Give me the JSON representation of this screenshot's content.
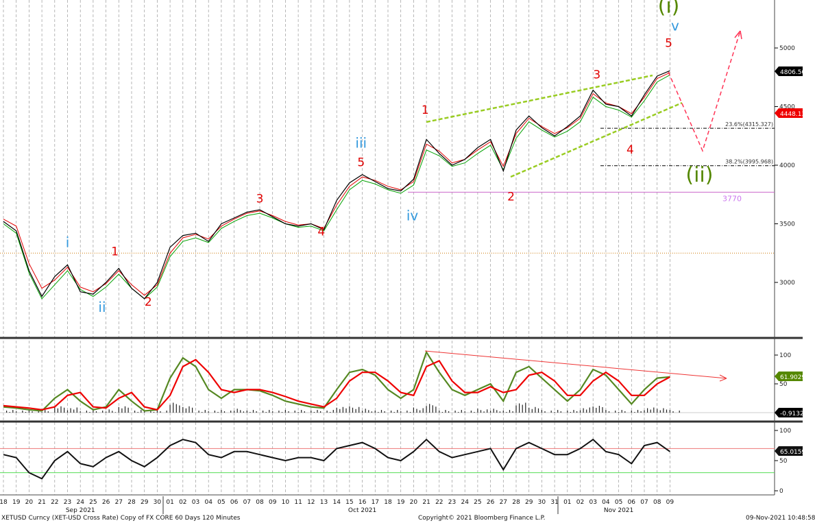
{
  "chart_data": {
    "type": "line",
    "instrument_line": "XETUSD Curncy (XET-USD Cross Rate) Copy of FX CORE 60 Days 120 Minutes",
    "copyright": "Copyright© 2021 Bloomberg Finance L.P.",
    "timestamp": "09-Nov-2021 10:48:58",
    "x_day_labels": [
      "18",
      "19",
      "20",
      "21",
      "22",
      "23",
      "24",
      "25",
      "26",
      "27",
      "28",
      "29",
      "30",
      "01",
      "02",
      "03",
      "04",
      "05",
      "06",
      "07",
      "08",
      "09",
      "10",
      "11",
      "12",
      "13",
      "14",
      "15",
      "16",
      "17",
      "18",
      "19",
      "20",
      "21",
      "22",
      "23",
      "24",
      "25",
      "26",
      "27",
      "28",
      "29",
      "30",
      "31",
      "01",
      "02",
      "03",
      "04",
      "05",
      "06",
      "07",
      "08",
      "09"
    ],
    "month_labels": [
      {
        "label": "Sep 2021",
        "day_index": 6
      },
      {
        "label": "Oct 2021",
        "day_index": 28
      },
      {
        "label": "Nov 2021",
        "day_index": 48
      }
    ],
    "grid": true,
    "price_panel": {
      "ylim": [
        2650,
        5350
      ],
      "y_ticks": [
        "5000",
        "4500",
        "4000",
        "3500",
        "3000"
      ],
      "y_tick_values": [
        5000,
        4500,
        4000,
        3500,
        3000
      ],
      "series": [
        {
          "color": "#000000",
          "values": [
            3520,
            3440,
            3100,
            2880,
            3050,
            3150,
            2920,
            2900,
            3000,
            3120,
            2950,
            2860,
            3000,
            3300,
            3400,
            3420,
            3350,
            3500,
            3550,
            3600,
            3620,
            3560,
            3500,
            3480,
            3500,
            3450,
            3700,
            3850,
            3920,
            3860,
            3800,
            3780,
            3880,
            4220,
            4100,
            4000,
            4050,
            4150,
            4220,
            3950,
            4300,
            4420,
            4320,
            4250,
            4330,
            4420,
            4640,
            4520,
            4500,
            4420,
            4600,
            4760,
            4806
          ]
        },
        {
          "color": "#e00000",
          "values": [
            3540,
            3480,
            3160,
            2950,
            3020,
            3130,
            2960,
            2920,
            2990,
            3100,
            2980,
            2890,
            2980,
            3250,
            3380,
            3410,
            3370,
            3480,
            3540,
            3590,
            3610,
            3570,
            3520,
            3490,
            3500,
            3460,
            3660,
            3820,
            3900,
            3870,
            3820,
            3790,
            3860,
            4180,
            4120,
            4020,
            4050,
            4130,
            4200,
            3990,
            4270,
            4400,
            4330,
            4270,
            4320,
            4400,
            4610,
            4530,
            4500,
            4440,
            4580,
            4740,
            4790
          ]
        },
        {
          "color": "#00a000",
          "values": [
            3500,
            3420,
            3080,
            2860,
            2980,
            3100,
            2940,
            2880,
            2960,
            3070,
            2950,
            2860,
            2960,
            3220,
            3350,
            3380,
            3340,
            3460,
            3520,
            3570,
            3590,
            3550,
            3500,
            3470,
            3480,
            3440,
            3620,
            3790,
            3870,
            3840,
            3790,
            3760,
            3830,
            4130,
            4080,
            3990,
            4020,
            4100,
            4170,
            3960,
            4230,
            4370,
            4300,
            4240,
            4290,
            4370,
            4580,
            4500,
            4470,
            4410,
            4550,
            4710,
            4770
          ]
        }
      ],
      "last_price_label": "4806.500",
      "red_price_label": "4448.133",
      "horizontal_levels": [
        {
          "value": 3250,
          "color": "#cc7700",
          "label": ""
        },
        {
          "value": 3770,
          "color": "#cc66cc",
          "label": "3770"
        },
        {
          "value": 4315.327,
          "color": "#000000",
          "label": "23.6%(4315.327)"
        },
        {
          "value": 3995.968,
          "color": "#000000",
          "label": "38.2%(3995.968)"
        }
      ],
      "wave_labels": [
        {
          "text": "i",
          "color": "#3399dd",
          "day": 5,
          "price": 3300
        },
        {
          "text": "ii",
          "color": "#3399dd",
          "day": 7.7,
          "price": 2750
        },
        {
          "text": "1",
          "color": "#e00000",
          "day": 8.7,
          "price": 3230
        },
        {
          "text": "2",
          "color": "#e00000",
          "day": 11.3,
          "price": 2800
        },
        {
          "text": "3",
          "color": "#e00000",
          "day": 20,
          "price": 3680
        },
        {
          "text": "4",
          "color": "#e00000",
          "day": 24.8,
          "price": 3400
        },
        {
          "text": "iii",
          "color": "#3399dd",
          "day": 27.9,
          "price": 4150
        },
        {
          "text": "5",
          "color": "#e00000",
          "day": 27.9,
          "price": 3990
        },
        {
          "text": "iv",
          "color": "#3399dd",
          "day": 31.9,
          "price": 3530
        },
        {
          "text": "1",
          "color": "#e00000",
          "day": 32.9,
          "price": 4440
        },
        {
          "text": "2",
          "color": "#e00000",
          "day": 39.6,
          "price": 3700
        },
        {
          "text": "3",
          "color": "#e00000",
          "day": 46.3,
          "price": 4740
        },
        {
          "text": "4",
          "color": "#e00000",
          "day": 48.9,
          "price": 4100
        },
        {
          "text": "5",
          "color": "#e00000",
          "day": 51.9,
          "price": 5010
        },
        {
          "text": "v",
          "color": "#3399dd",
          "day": 52.4,
          "price": 5150
        },
        {
          "text": "(i)",
          "color": "#558800",
          "day": 51.9,
          "price": 5300
        },
        {
          "text": "(ii)",
          "color": "#558800",
          "day": 54.3,
          "price": 3860
        }
      ]
    },
    "stochastic_panel": {
      "ylim": [
        0,
        112
      ],
      "y_ticks": [
        "100",
        "50"
      ],
      "y_tick_values": [
        100,
        50
      ],
      "k_color": "#558822",
      "d_color": "#ee0000",
      "k": [
        10,
        8,
        5,
        3,
        25,
        40,
        20,
        5,
        10,
        40,
        20,
        3,
        5,
        60,
        95,
        80,
        40,
        25,
        40,
        40,
        38,
        30,
        20,
        15,
        10,
        8,
        40,
        70,
        75,
        65,
        40,
        25,
        40,
        105,
        70,
        40,
        30,
        40,
        50,
        20,
        70,
        80,
        60,
        40,
        20,
        40,
        75,
        65,
        40,
        15,
        40,
        60,
        62
      ],
      "d": [
        12,
        10,
        8,
        5,
        10,
        30,
        35,
        10,
        8,
        25,
        35,
        10,
        5,
        30,
        80,
        92,
        70,
        40,
        35,
        40,
        40,
        35,
        28,
        20,
        15,
        10,
        25,
        55,
        70,
        70,
        55,
        35,
        30,
        80,
        90,
        55,
        35,
        35,
        45,
        35,
        40,
        65,
        70,
        55,
        30,
        30,
        55,
        70,
        55,
        30,
        30,
        50,
        61.9
      ],
      "last_k_label": "61.9029",
      "histogram_label": "-0.9132"
    },
    "rsi_panel": {
      "ylim": [
        -5,
        112
      ],
      "y_ticks": [
        "100",
        "50",
        "0"
      ],
      "y_tick_values": [
        100,
        50,
        0
      ],
      "upper_level": 70,
      "lower_level": 30,
      "values": [
        60,
        55,
        30,
        20,
        50,
        65,
        45,
        40,
        55,
        65,
        50,
        40,
        55,
        75,
        85,
        80,
        60,
        55,
        65,
        65,
        60,
        55,
        50,
        55,
        55,
        50,
        70,
        75,
        80,
        70,
        55,
        50,
        65,
        85,
        65,
        55,
        60,
        65,
        70,
        35,
        70,
        80,
        70,
        60,
        60,
        70,
        85,
        65,
        60,
        45,
        75,
        80,
        65
      ],
      "last_label": "65.0159"
    }
  }
}
